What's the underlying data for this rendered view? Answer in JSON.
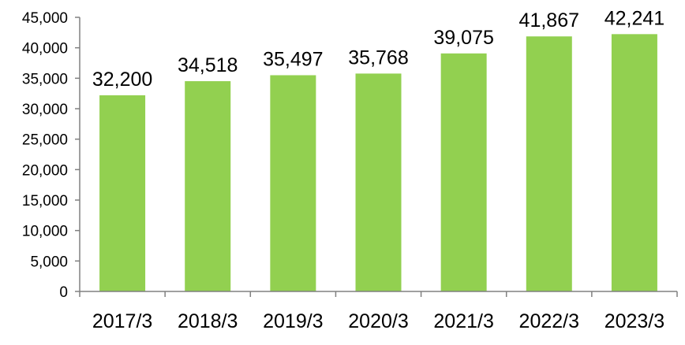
{
  "chart_data": {
    "type": "bar",
    "categories": [
      "2017/3",
      "2018/3",
      "2019/3",
      "2020/3",
      "2021/3",
      "2022/3",
      "2023/3"
    ],
    "values": [
      32200,
      34518,
      35497,
      35768,
      39075,
      41867,
      42241
    ],
    "value_labels": [
      "32,200",
      "34,518",
      "35,497",
      "35,768",
      "39,075",
      "41,867",
      "42,241"
    ],
    "ylim": [
      0,
      45000
    ],
    "yticks": [
      0,
      5000,
      10000,
      15000,
      20000,
      25000,
      30000,
      35000,
      40000,
      45000
    ],
    "ytick_labels": [
      "0",
      "5,000",
      "10,000",
      "15,000",
      "20,000",
      "25,000",
      "30,000",
      "35,000",
      "40,000",
      "45,000"
    ],
    "grid": false,
    "legend": "none",
    "colors": {
      "bar": "#92d050",
      "axis": "#808080",
      "text": "#000000"
    }
  }
}
